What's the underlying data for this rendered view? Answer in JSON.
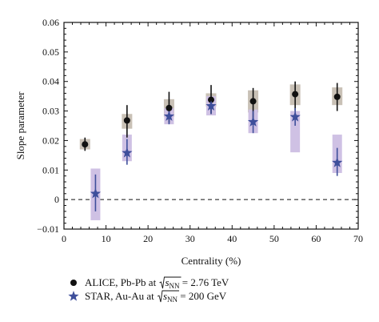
{
  "chart_data": {
    "type": "scatter",
    "title": "",
    "xlabel": "Centrality (%)",
    "ylabel": "Slope parameter",
    "xlim": [
      0,
      70
    ],
    "ylim": [
      -0.01,
      0.06
    ],
    "x_ticks": [
      0,
      10,
      20,
      30,
      40,
      50,
      60,
      70
    ],
    "y_ticks": [
      -0.01,
      0,
      0.01,
      0.02,
      0.03,
      0.04,
      0.05,
      0.06
    ],
    "x_tick_labels": [
      "0",
      "10",
      "20",
      "30",
      "40",
      "50",
      "60",
      "70"
    ],
    "y_tick_labels": [
      "−0.01",
      "0",
      "0.01",
      "0.02",
      "0.03",
      "0.04",
      "0.05",
      "0.06"
    ],
    "grid": false,
    "reference_line": {
      "y": 0,
      "style": "dashed"
    },
    "legend_placement": "below",
    "series": [
      {
        "marker": "circle",
        "color": "#111111",
        "box_color": "#c9c1b6",
        "legend_prefix": "ALICE, Pb-Pb at ",
        "legend_sqrt_var": "s",
        "legend_sub": "NN",
        "legend_suffix": " = 2.76 TeV",
        "points": [
          {
            "x": 5,
            "y": 0.0187,
            "stat_lo": 0.0165,
            "stat_hi": 0.021,
            "sys_lo": 0.017,
            "sys_hi": 0.0205
          },
          {
            "x": 15,
            "y": 0.0268,
            "stat_lo": 0.021,
            "stat_hi": 0.032,
            "sys_lo": 0.024,
            "sys_hi": 0.029
          },
          {
            "x": 25,
            "y": 0.031,
            "stat_lo": 0.026,
            "stat_hi": 0.0365,
            "sys_lo": 0.028,
            "sys_hi": 0.034
          },
          {
            "x": 35,
            "y": 0.0338,
            "stat_lo": 0.029,
            "stat_hi": 0.0388,
            "sys_lo": 0.0315,
            "sys_hi": 0.036
          },
          {
            "x": 45,
            "y": 0.0333,
            "stat_lo": 0.0275,
            "stat_hi": 0.0378,
            "sys_lo": 0.0295,
            "sys_hi": 0.037
          },
          {
            "x": 55,
            "y": 0.0357,
            "stat_lo": 0.0302,
            "stat_hi": 0.04,
            "sys_lo": 0.032,
            "sys_hi": 0.039
          },
          {
            "x": 65,
            "y": 0.0348,
            "stat_lo": 0.03,
            "stat_hi": 0.0395,
            "sys_lo": 0.032,
            "sys_hi": 0.038
          }
        ]
      },
      {
        "marker": "star",
        "color": "#3e4f9b",
        "box_color": "#cfc1e4",
        "legend_prefix": "STAR, Au-Au at ",
        "legend_sqrt_var": "s",
        "legend_sub": "NN",
        "legend_suffix": " = 200 GeV",
        "points": [
          {
            "x": 7.5,
            "y": 0.002,
            "stat_lo": -0.004,
            "stat_hi": 0.0085,
            "sys_lo": -0.007,
            "sys_hi": 0.0105
          },
          {
            "x": 15,
            "y": 0.0158,
            "stat_lo": 0.0118,
            "stat_hi": 0.0205,
            "sys_lo": 0.013,
            "sys_hi": 0.022
          },
          {
            "x": 25,
            "y": 0.0282,
            "stat_lo": 0.0255,
            "stat_hi": 0.0315,
            "sys_lo": 0.0255,
            "sys_hi": 0.031
          },
          {
            "x": 35,
            "y": 0.0317,
            "stat_lo": 0.029,
            "stat_hi": 0.0345,
            "sys_lo": 0.0285,
            "sys_hi": 0.035
          },
          {
            "x": 45,
            "y": 0.0263,
            "stat_lo": 0.0225,
            "stat_hi": 0.03,
            "sys_lo": 0.0225,
            "sys_hi": 0.0305
          },
          {
            "x": 55,
            "y": 0.028,
            "stat_lo": 0.025,
            "stat_hi": 0.031,
            "sys_lo": 0.016,
            "sys_hi": 0.03
          },
          {
            "x": 65,
            "y": 0.0125,
            "stat_lo": 0.008,
            "stat_hi": 0.0175,
            "sys_lo": 0.009,
            "sys_hi": 0.022
          }
        ]
      }
    ]
  }
}
